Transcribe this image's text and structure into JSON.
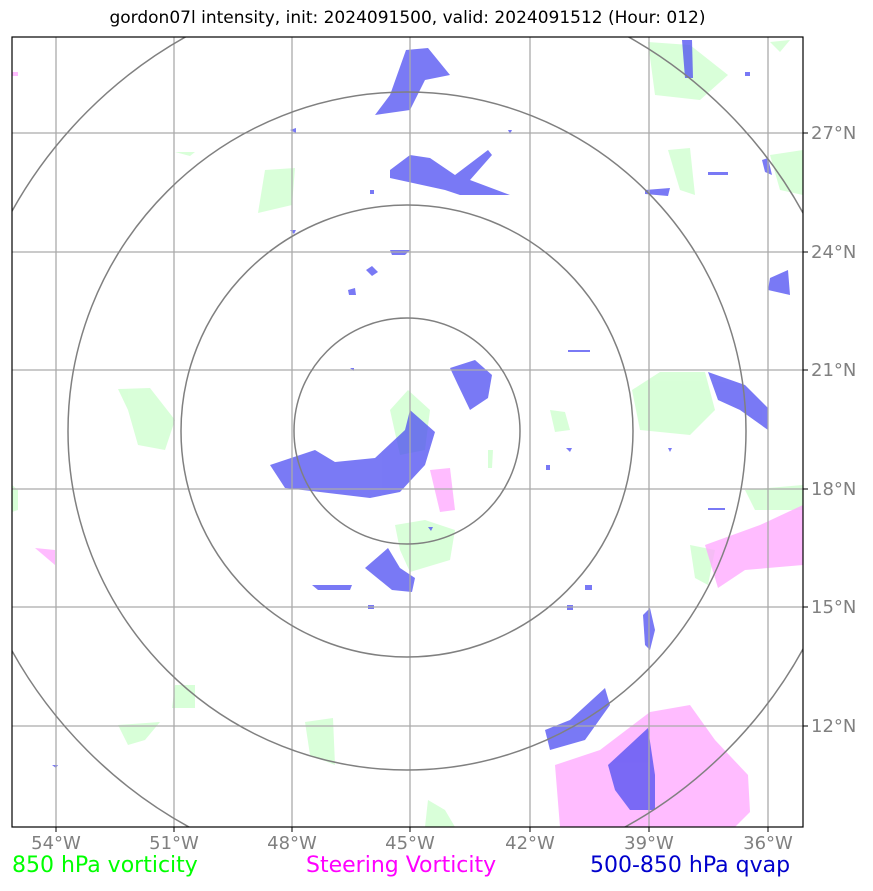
{
  "title": "gordon07l intensity, init: 2024091500, valid: 2024091512 (Hour: 012)",
  "map": {
    "lon_labels": [
      "54°W",
      "51°W",
      "48°W",
      "45°W",
      "42°W",
      "39°W",
      "36°W"
    ],
    "lat_labels": [
      "27°N",
      "24°N",
      "21°N",
      "18°N",
      "15°N",
      "12°N"
    ],
    "rings_center": {
      "lon": -45,
      "lat": 19.5
    }
  },
  "legend": {
    "vorticity_850": {
      "label": "850 hPa vorticity",
      "color": "#00ff00"
    },
    "steering": {
      "label": "Steering Vorticity",
      "color": "#ff00ff"
    },
    "qvap": {
      "label": "500-850 hPa qvap",
      "color": "#0000cc"
    }
  },
  "colors": {
    "vort_fill": "#ccffcc",
    "steer_fill": "#ffa6ff",
    "qvap_fill": "#4d4df2",
    "grid": "#aaaaaa",
    "ring": "#808080",
    "tick_label": "#808080"
  }
}
